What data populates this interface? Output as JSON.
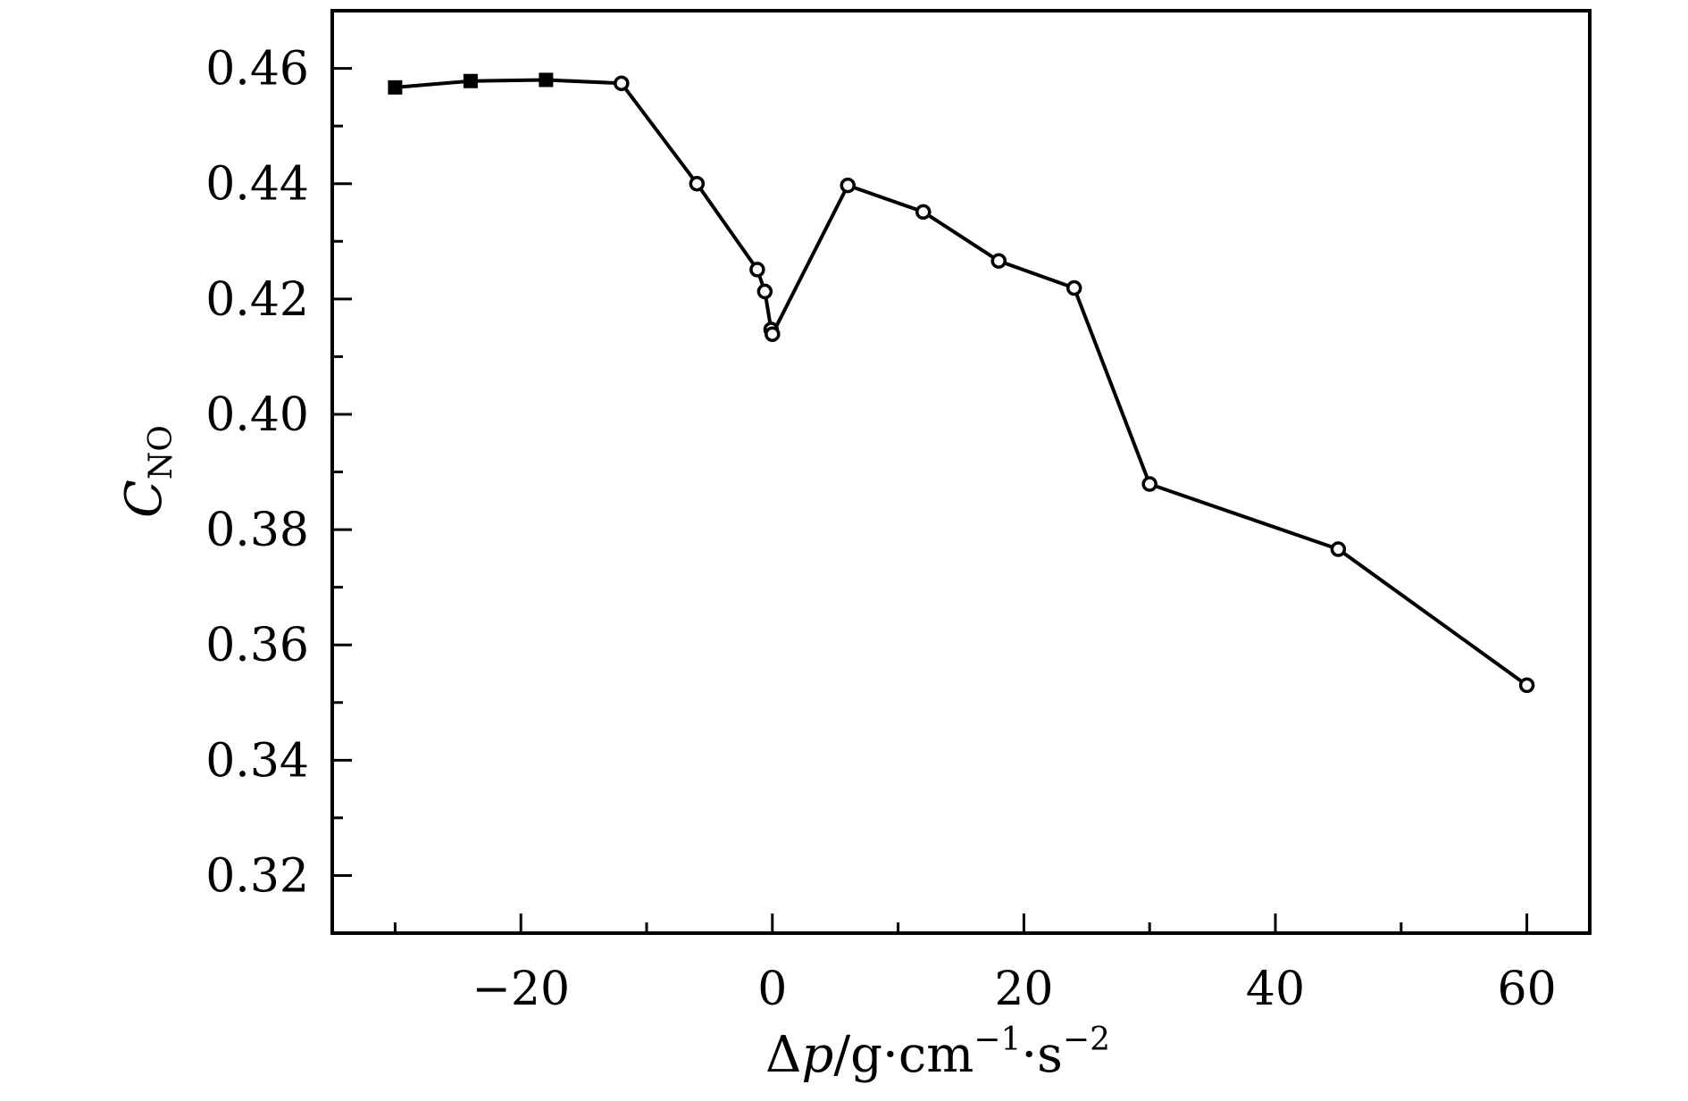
{
  "chart_data": {
    "type": "line",
    "title": "",
    "xlabel": {
      "delta": "Δ",
      "var": "p",
      "sep": "/g·cm",
      "exp1": "−1",
      "dot": "·s",
      "exp2": "−2"
    },
    "ylabel": {
      "var": "C",
      "sub": "NO"
    },
    "xlim": [
      -35,
      65
    ],
    "ylim": [
      0.31,
      0.47
    ],
    "xticks": [
      -20,
      0,
      20,
      40,
      60
    ],
    "xtick_labels": [
      "−20",
      "0",
      "20",
      "40",
      "60"
    ],
    "x_minor_step": 10,
    "yticks": [
      0.32,
      0.34,
      0.36,
      0.38,
      0.4,
      0.42,
      0.44,
      0.46
    ],
    "ytick_labels": [
      "0.32",
      "0.34",
      "0.36",
      "0.38",
      "0.40",
      "0.42",
      "0.44",
      "0.46"
    ],
    "y_minor_step": 0.01,
    "grid": false,
    "series": [
      {
        "marker": "filled-square",
        "color": "#000000",
        "points": [
          {
            "x": -30,
            "y": 0.4567
          },
          {
            "x": -24,
            "y": 0.4578
          },
          {
            "x": -18,
            "y": 0.458
          }
        ]
      },
      {
        "marker": "open-circle",
        "color": "#000000",
        "points": [
          {
            "x": -12,
            "y": 0.4574
          },
          {
            "x": -6,
            "y": 0.44
          },
          {
            "x": -1.2,
            "y": 0.4251
          },
          {
            "x": -0.6,
            "y": 0.4213
          },
          {
            "x": -0.1,
            "y": 0.4147
          },
          {
            "x": 0,
            "y": 0.4139
          },
          {
            "x": 6,
            "y": 0.4397
          },
          {
            "x": 12,
            "y": 0.4351
          },
          {
            "x": 18,
            "y": 0.4266
          },
          {
            "x": 24,
            "y": 0.4219
          },
          {
            "x": 30,
            "y": 0.3879
          },
          {
            "x": 45,
            "y": 0.3766
          },
          {
            "x": 60,
            "y": 0.353
          }
        ]
      }
    ]
  }
}
